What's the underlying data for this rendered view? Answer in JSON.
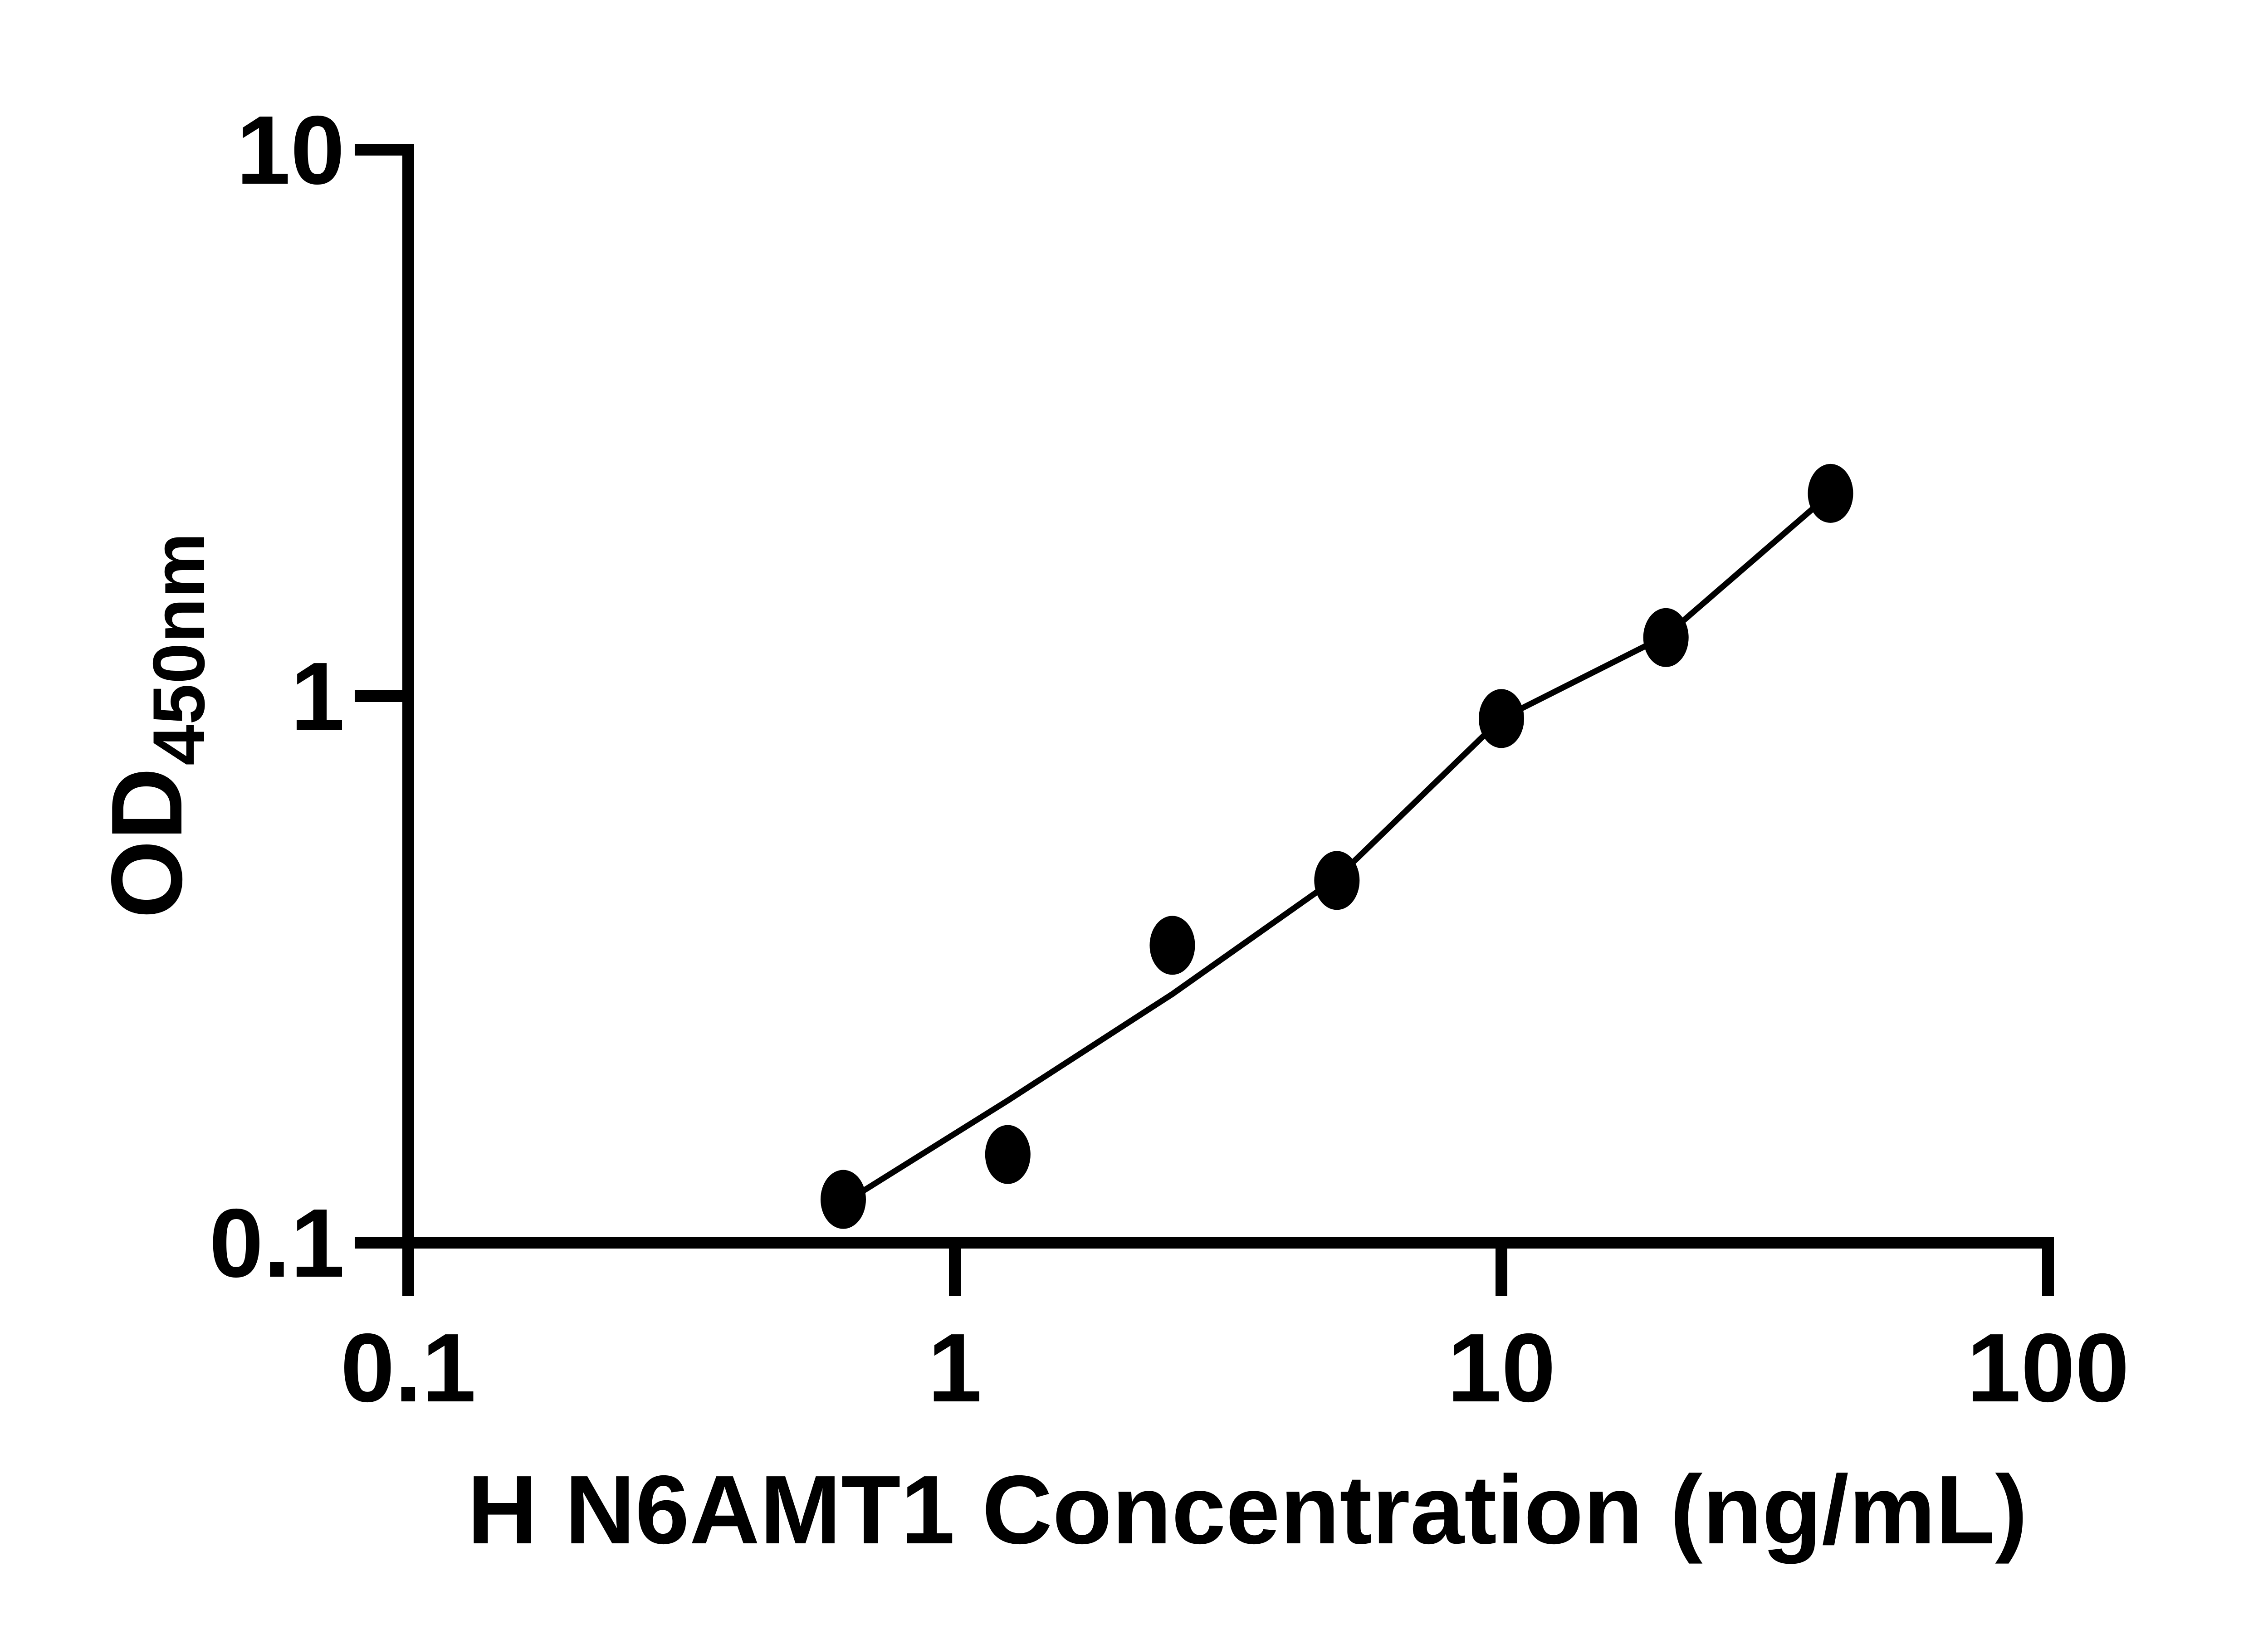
{
  "figure": {
    "background_color": "#ffffff",
    "foreground_color": "#000000"
  },
  "chart_data": {
    "type": "scatter",
    "title": "",
    "xlabel": "H N6AMT1 Concentration (ng/mL)",
    "ylabel": "OD",
    "ylabel_subscript": "450nm",
    "x_scale": "log",
    "y_scale": "log",
    "xlim": [
      0.1,
      100
    ],
    "ylim": [
      0.1,
      10
    ],
    "grid": false,
    "legend": false,
    "x_ticks": [
      {
        "value": 0.1,
        "label": "0.1"
      },
      {
        "value": 1,
        "label": "1"
      },
      {
        "value": 10,
        "label": "10"
      },
      {
        "value": 100,
        "label": "100"
      }
    ],
    "y_ticks": [
      {
        "value": 0.1,
        "label": "0.1"
      },
      {
        "value": 1,
        "label": "1"
      },
      {
        "value": 10,
        "label": "10"
      }
    ],
    "series": [
      {
        "name": "standard-points",
        "marker": "filled-circle",
        "color": "#000000",
        "points": [
          {
            "x": 0.625,
            "y": 0.12
          },
          {
            "x": 1.25,
            "y": 0.145
          },
          {
            "x": 2.5,
            "y": 0.35
          },
          {
            "x": 5,
            "y": 0.46
          },
          {
            "x": 10,
            "y": 0.91
          },
          {
            "x": 20,
            "y": 1.28
          },
          {
            "x": 40,
            "y": 2.35
          }
        ]
      }
    ],
    "fit_line": {
      "name": "standard-curve-fit",
      "color": "#000000",
      "points": [
        {
          "x": 0.625,
          "y": 0.118
        },
        {
          "x": 1.25,
          "y": 0.182
        },
        {
          "x": 2.5,
          "y": 0.285
        },
        {
          "x": 5,
          "y": 0.465
        },
        {
          "x": 10,
          "y": 0.91
        },
        {
          "x": 20,
          "y": 1.29
        },
        {
          "x": 40,
          "y": 2.35
        }
      ]
    }
  }
}
